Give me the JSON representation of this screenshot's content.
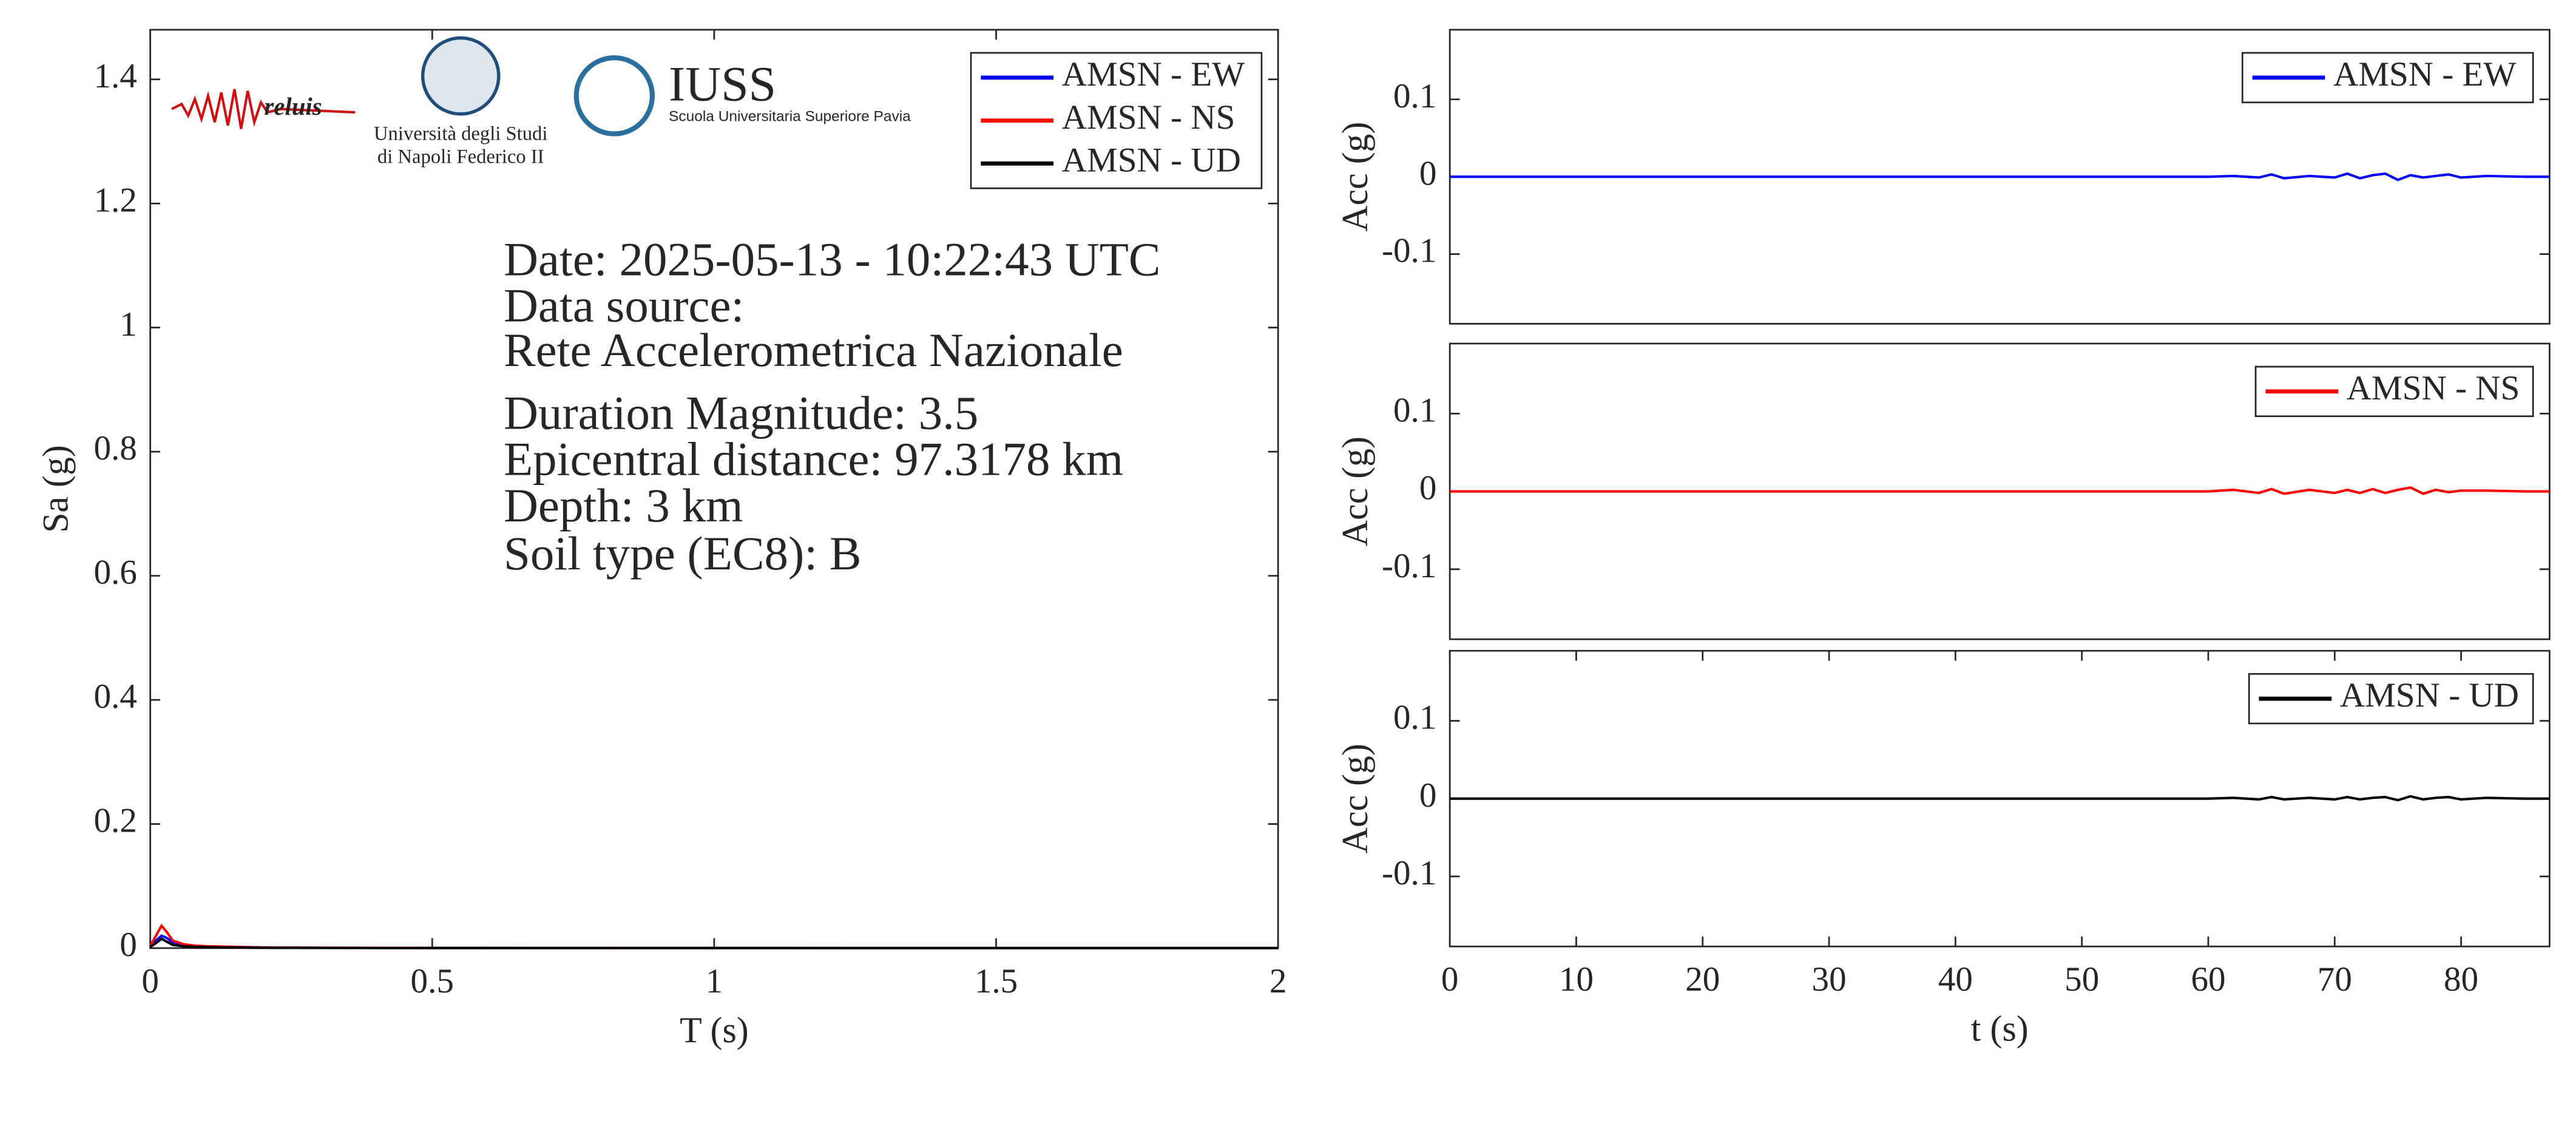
{
  "logos": [
    "reluis",
    "Università degli Studi",
    "di Napoli Federico II",
    "IUSS",
    "Scuola Universitaria Superiore Pavia"
  ],
  "chart_data": [
    {
      "type": "line",
      "xlabel": "T (s)",
      "ylabel": "Sa (g)",
      "xlim": [
        0,
        2
      ],
      "ylim": [
        0,
        1.48
      ],
      "xticks": [
        0,
        0.5,
        1,
        1.5,
        2
      ],
      "yticks": [
        0,
        0.2,
        0.4,
        0.6,
        0.8,
        1,
        1.2,
        1.4
      ],
      "legend": "upper right",
      "annotations": [
        "Date: 2025-05-13 - 10:22:43 UTC",
        "Data source:",
        "Rete Accelerometrica Nazionale",
        "Duration Magnitude: 3.5",
        "Epicentral distance: 97.3178 km",
        "Depth: 3 km",
        "Soil type (EC8): B"
      ],
      "x": [
        0,
        0.01,
        0.02,
        0.03,
        0.04,
        0.06,
        0.08,
        0.1,
        0.15,
        0.2,
        0.3,
        0.5,
        1,
        1.5,
        2
      ],
      "series": [
        {
          "name": "AMSN - EW",
          "color": "#0000ff",
          "values": [
            0.002,
            0.012,
            0.02,
            0.016,
            0.009,
            0.005,
            0.003,
            0.002,
            0.0015,
            0.001,
            0.0005,
            0.0002,
            0.0001,
            0,
            0
          ]
        },
        {
          "name": "AMSN - NS",
          "color": "#ff0000",
          "values": [
            0.003,
            0.02,
            0.036,
            0.025,
            0.012,
            0.006,
            0.004,
            0.003,
            0.002,
            0.001,
            0.0005,
            0.0002,
            0.0001,
            0,
            0
          ]
        },
        {
          "name": "AMSN - UD",
          "color": "#000000",
          "values": [
            0.002,
            0.008,
            0.015,
            0.01,
            0.005,
            0.003,
            0.002,
            0.0015,
            0.001,
            0.0005,
            0.0003,
            0.0001,
            0,
            0,
            0
          ]
        }
      ]
    },
    {
      "type": "line",
      "ylabel": "Acc (g)",
      "xlim": [
        0,
        87
      ],
      "ylim": [
        -0.19,
        0.19
      ],
      "yticks": [
        -0.1,
        0,
        0.1
      ],
      "legend": "upper right",
      "x": [
        0,
        10,
        20,
        30,
        40,
        50,
        60,
        62,
        64,
        65,
        66,
        68,
        70,
        71,
        72,
        73,
        74,
        75,
        76,
        77,
        78,
        79,
        80,
        82,
        85,
        87
      ],
      "series": [
        {
          "name": "AMSN - EW",
          "color": "#0000ff",
          "values": [
            0,
            0,
            0,
            0,
            0,
            0,
            0,
            0.001,
            -0.001,
            0.003,
            -0.002,
            0.001,
            -0.001,
            0.004,
            -0.002,
            0.002,
            0.004,
            -0.004,
            0.002,
            -0.001,
            0.001,
            0.003,
            -0.001,
            0.001,
            0,
            0
          ]
        }
      ]
    },
    {
      "type": "line",
      "ylabel": "Acc (g)",
      "xlim": [
        0,
        87
      ],
      "ylim": [
        -0.19,
        0.19
      ],
      "yticks": [
        -0.1,
        0,
        0.1
      ],
      "legend": "upper right",
      "x": [
        0,
        10,
        20,
        30,
        40,
        50,
        60,
        62,
        64,
        65,
        66,
        68,
        70,
        71,
        72,
        73,
        74,
        75,
        76,
        77,
        78,
        79,
        80,
        82,
        85,
        87
      ],
      "series": [
        {
          "name": "AMSN - NS",
          "color": "#ff0000",
          "values": [
            0,
            0,
            0,
            0,
            0,
            0,
            0,
            0.002,
            -0.002,
            0.003,
            -0.003,
            0.002,
            -0.002,
            0.002,
            -0.002,
            0.003,
            -0.002,
            0.002,
            0.005,
            -0.003,
            0.002,
            -0.001,
            0.001,
            0.001,
            0,
            0
          ]
        }
      ]
    },
    {
      "type": "line",
      "xlabel": "t (s)",
      "ylabel": "Acc (g)",
      "xlim": [
        0,
        87
      ],
      "ylim": [
        -0.19,
        0.19
      ],
      "xticks": [
        0,
        10,
        20,
        30,
        40,
        50,
        60,
        70,
        80
      ],
      "yticks": [
        -0.1,
        0,
        0.1
      ],
      "legend": "upper right",
      "x": [
        0,
        10,
        20,
        30,
        40,
        50,
        60,
        62,
        64,
        65,
        66,
        68,
        70,
        71,
        72,
        73,
        74,
        75,
        76,
        77,
        78,
        79,
        80,
        82,
        85,
        87
      ],
      "series": [
        {
          "name": "AMSN - UD",
          "color": "#000000",
          "values": [
            0,
            0,
            0,
            0,
            0,
            0,
            0,
            0.001,
            -0.001,
            0.002,
            -0.001,
            0.001,
            -0.001,
            0.002,
            -0.001,
            0.001,
            0.002,
            -0.002,
            0.003,
            -0.001,
            0.001,
            0.002,
            -0.001,
            0.001,
            0,
            0
          ]
        }
      ]
    }
  ]
}
